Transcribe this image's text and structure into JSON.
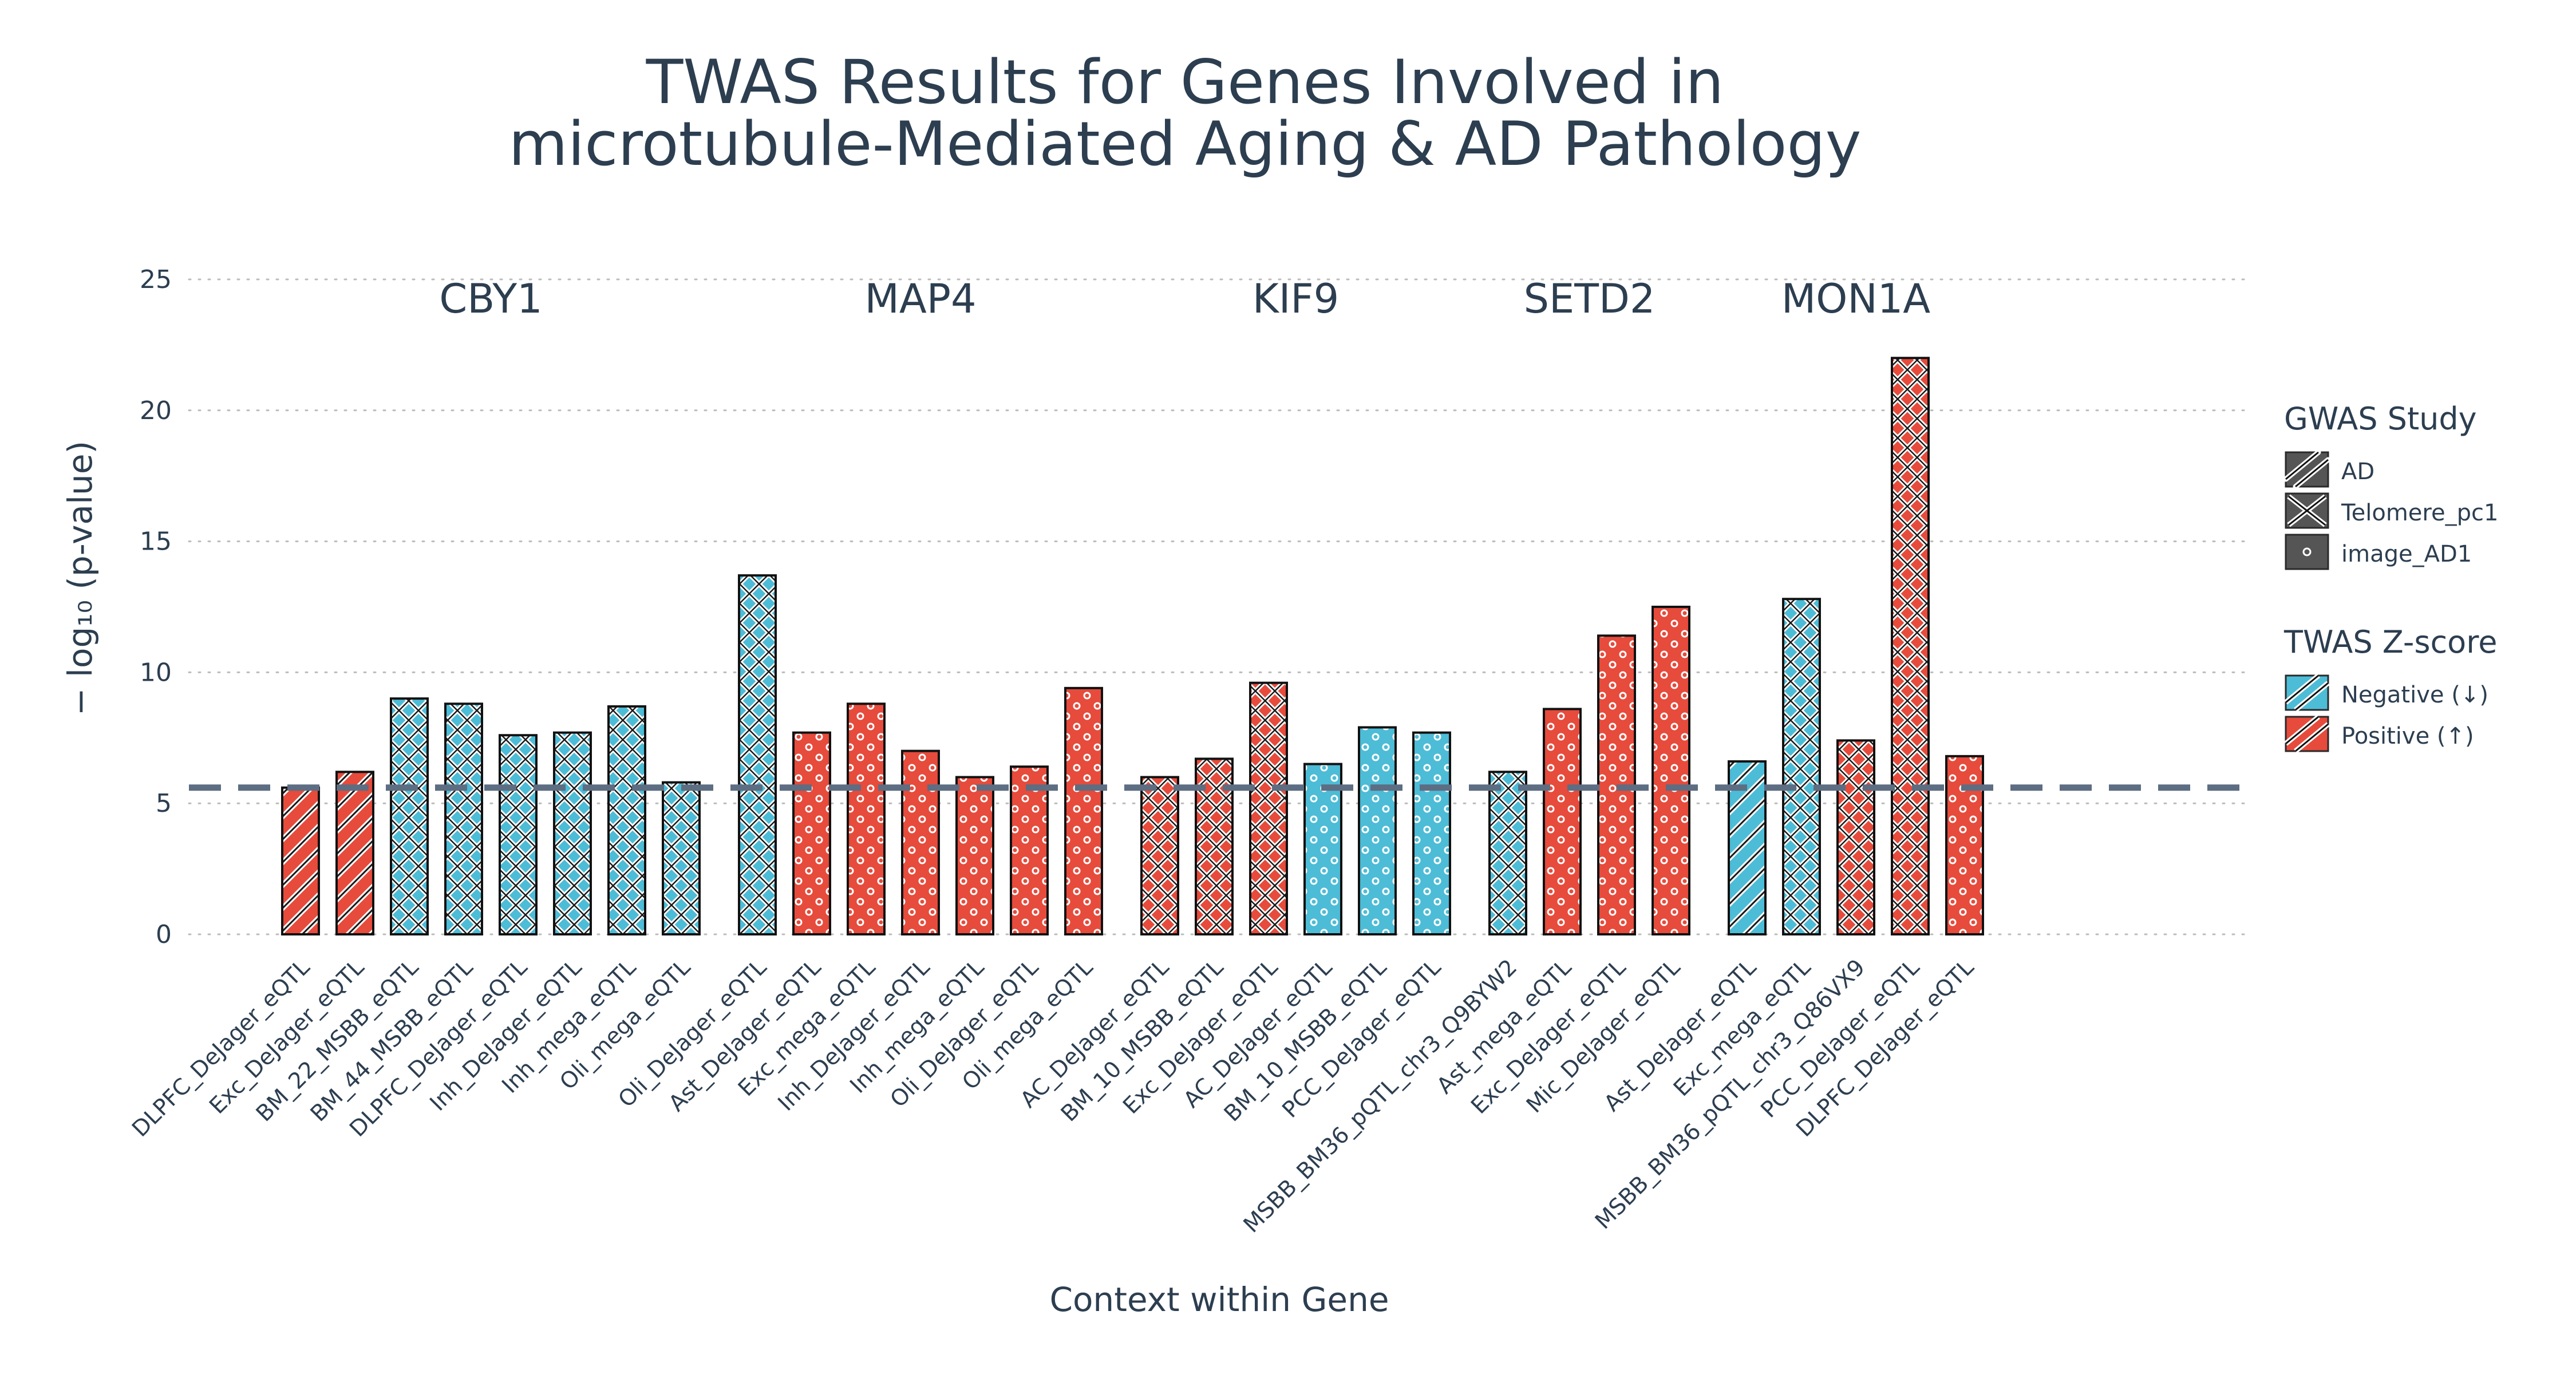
{
  "chart_data": {
    "type": "bar",
    "title": [
      "TWAS Results for Genes Involved in",
      "microtubule-Mediated Aging & AD Pathology"
    ],
    "xlabel": "Context within Gene",
    "ylabel": "− log₁₀ (p-value)",
    "ylim": [
      0,
      25
    ],
    "yticks": [
      0,
      5,
      10,
      15,
      20,
      25
    ],
    "grid": "horizontal dotted",
    "threshold": 5.6,
    "legend_placement": "right",
    "colors": {
      "negative": "#4dbcd6",
      "positive": "#e64b3c",
      "threshold": "#5d6d82",
      "legend_fill": "#555555"
    },
    "legends": {
      "gwas": {
        "title": "GWAS Study",
        "items": [
          {
            "label": "AD",
            "pattern": "diag"
          },
          {
            "label": "Telomere_pc1",
            "pattern": "cross"
          },
          {
            "label": "image_AD1",
            "pattern": "dots"
          }
        ]
      },
      "zscore": {
        "title": "TWAS Z-score",
        "items": [
          {
            "label": "Negative (↓)",
            "color": "negative"
          },
          {
            "label": "Positive (↑)",
            "color": "positive"
          }
        ]
      }
    },
    "groups": [
      {
        "gene": "CBY1",
        "bars": [
          {
            "context": "DLPFC_DeJager_eQTL",
            "value": 5.6,
            "z": "positive",
            "study": "AD"
          },
          {
            "context": "Exc_DeJager_eQTL",
            "value": 6.2,
            "z": "positive",
            "study": "AD"
          },
          {
            "context": "BM_22_MSBB_eQTL",
            "value": 9.0,
            "z": "negative",
            "study": "Telomere_pc1"
          },
          {
            "context": "BM_44_MSBB_eQTL",
            "value": 8.8,
            "z": "negative",
            "study": "Telomere_pc1"
          },
          {
            "context": "DLPFC_DeJager_eQTL",
            "value": 7.6,
            "z": "negative",
            "study": "Telomere_pc1"
          },
          {
            "context": "Inh_DeJager_eQTL",
            "value": 7.7,
            "z": "negative",
            "study": "Telomere_pc1"
          },
          {
            "context": "Inh_mega_eQTL",
            "value": 8.7,
            "z": "negative",
            "study": "Telomere_pc1"
          },
          {
            "context": "Oli_mega_eQTL",
            "value": 5.8,
            "z": "negative",
            "study": "Telomere_pc1"
          }
        ]
      },
      {
        "gene": "MAP4",
        "bars": [
          {
            "context": "Oli_DeJager_eQTL",
            "value": 13.7,
            "z": "negative",
            "study": "Telomere_pc1"
          },
          {
            "context": "Ast_DeJager_eQTL",
            "value": 7.7,
            "z": "positive",
            "study": "image_AD1"
          },
          {
            "context": "Exc_mega_eQTL",
            "value": 8.8,
            "z": "positive",
            "study": "image_AD1"
          },
          {
            "context": "Inh_DeJager_eQTL",
            "value": 7.0,
            "z": "positive",
            "study": "image_AD1"
          },
          {
            "context": "Inh_mega_eQTL",
            "value": 6.0,
            "z": "positive",
            "study": "image_AD1"
          },
          {
            "context": "Oli_DeJager_eQTL",
            "value": 6.4,
            "z": "positive",
            "study": "image_AD1"
          },
          {
            "context": "Oli_mega_eQTL",
            "value": 9.4,
            "z": "positive",
            "study": "image_AD1"
          }
        ]
      },
      {
        "gene": "KIF9",
        "bars": [
          {
            "context": "AC_DeJager_eQTL",
            "value": 6.0,
            "z": "positive",
            "study": "Telomere_pc1"
          },
          {
            "context": "BM_10_MSBB_eQTL",
            "value": 6.7,
            "z": "positive",
            "study": "Telomere_pc1"
          },
          {
            "context": "Exc_DeJager_eQTL",
            "value": 9.6,
            "z": "positive",
            "study": "Telomere_pc1"
          },
          {
            "context": "AC_DeJager_eQTL",
            "value": 6.5,
            "z": "negative",
            "study": "image_AD1"
          },
          {
            "context": "BM_10_MSBB_eQTL",
            "value": 7.9,
            "z": "negative",
            "study": "image_AD1"
          },
          {
            "context": "PCC_DeJager_eQTL",
            "value": 7.7,
            "z": "negative",
            "study": "image_AD1"
          }
        ]
      },
      {
        "gene": "SETD2",
        "bars": [
          {
            "context": "MSBB_BM36_pQTL_chr3_Q9BYW2",
            "value": 6.2,
            "z": "negative",
            "study": "Telomere_pc1"
          },
          {
            "context": "Ast_mega_eQTL",
            "value": 8.6,
            "z": "positive",
            "study": "image_AD1"
          },
          {
            "context": "Exc_DeJager_eQTL",
            "value": 11.4,
            "z": "positive",
            "study": "image_AD1"
          },
          {
            "context": "Mic_DeJager_eQTL",
            "value": 12.5,
            "z": "positive",
            "study": "image_AD1"
          }
        ]
      },
      {
        "gene": "MON1A",
        "bars": [
          {
            "context": "Ast_DeJager_eQTL",
            "value": 6.6,
            "z": "negative",
            "study": "AD"
          },
          {
            "context": "Exc_mega_eQTL",
            "value": 12.8,
            "z": "negative",
            "study": "Telomere_pc1"
          },
          {
            "context": "MSBB_BM36_pQTL_chr3_Q86VX9",
            "value": 7.4,
            "z": "positive",
            "study": "Telomere_pc1"
          },
          {
            "context": "PCC_DeJager_eQTL",
            "value": 22.0,
            "z": "positive",
            "study": "Telomere_pc1"
          },
          {
            "context": "DLPFC_DeJager_eQTL",
            "value": 6.8,
            "z": "positive",
            "study": "image_AD1"
          }
        ]
      }
    ]
  }
}
